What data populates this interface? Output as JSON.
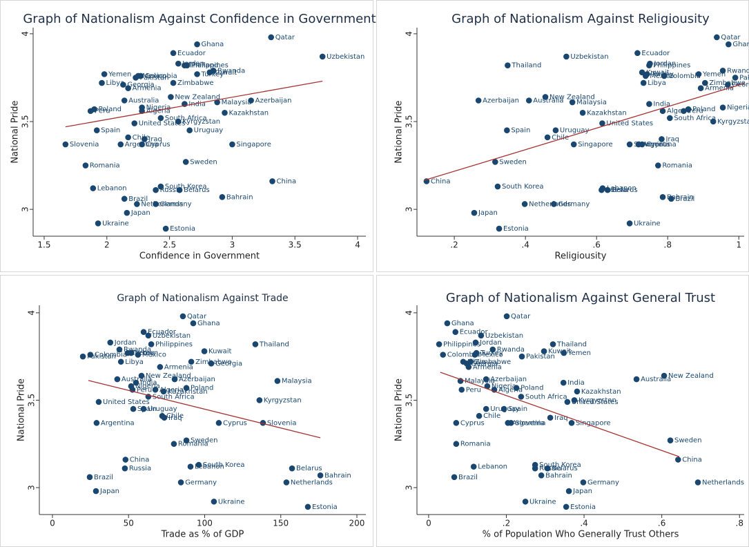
{
  "chart_data": [
    {
      "type": "scatter",
      "title": "Graph of Nationalism Against Confidence in Government",
      "x_label": "Confidence in Government",
      "y_label": "National Pride",
      "marker_color": "#1a476f",
      "fit_color": "#a83232",
      "xlim": [
        1.412,
        4.066
      ],
      "ylim": [
        2.847,
        4.035
      ],
      "xticks": [
        1.5,
        2,
        2.5,
        3,
        3.5,
        4
      ],
      "yticks": [
        3,
        3.5,
        4
      ],
      "labels": [
        "Qatar",
        "Ghana",
        "Uzbekistan",
        "Ecuador",
        "Philippines",
        "Jordan",
        "Thailand",
        "Rwanda",
        "Kuwait",
        "Turkey",
        "Mexico",
        "Colombia",
        "Yemen",
        "Pakistan",
        "Zimbabwe",
        "Libya",
        "Georgia",
        "Armenia",
        "New Zealand",
        "Azerbaijan",
        "Australia",
        "Malaysia",
        "India",
        "Nigeria",
        "Poland",
        "Kazakhstan",
        "Algeria",
        "Peru",
        "South Africa",
        "Kyrgyzstan",
        "United States",
        "Uruguay",
        "Spain",
        "Chile",
        "Iraq",
        "Singapore",
        "Slovenia",
        "Cyprus",
        "Argentina",
        "Sweden",
        "Romania",
        "China",
        "South Korea",
        "Lebanon",
        "Belarus",
        "Russia",
        "Bahrain",
        "Brazil",
        "Netherlands",
        "Germany",
        "Japan",
        "Ukraine",
        "Estonia"
      ],
      "x": [
        3.31,
        2.72,
        3.72,
        2.53,
        2.64,
        2.57,
        2.62,
        2.85,
        2.82,
        2.72,
        2.25,
        2.27,
        1.98,
        2.23,
        2.53,
        1.96,
        2.13,
        2.17,
        2.51,
        3.15,
        2.14,
        2.88,
        2.62,
        2.28,
        1.9,
        2.94,
        2.28,
        1.87,
        2.43,
        2.57,
        2.22,
        2.66,
        1.92,
        2.17,
        2.3,
        3.0,
        1.67,
        2.28,
        2.11,
        2.63,
        1.83,
        3.32,
        2.43,
        1.89,
        2.58,
        2.39,
        2.92,
        2.14,
        2.24,
        2.39,
        2.16,
        1.93,
        2.47
      ],
      "y": [
        3.98,
        3.94,
        3.87,
        3.89,
        3.82,
        3.83,
        3.82,
        3.79,
        3.78,
        3.77,
        3.76,
        3.76,
        3.77,
        3.75,
        3.72,
        3.72,
        3.71,
        3.69,
        3.64,
        3.62,
        3.62,
        3.61,
        3.6,
        3.58,
        3.57,
        3.55,
        3.56,
        3.56,
        3.52,
        3.5,
        3.49,
        3.45,
        3.45,
        3.41,
        3.4,
        3.37,
        3.37,
        3.37,
        3.37,
        3.27,
        3.25,
        3.16,
        3.13,
        3.12,
        3.11,
        3.11,
        3.07,
        3.06,
        3.03,
        3.03,
        2.98,
        2.92,
        2.89
      ],
      "fit": {
        "x": [
          1.67,
          3.72
        ],
        "y": [
          3.47,
          3.73
        ]
      }
    },
    {
      "type": "scatter",
      "title": "Graph of Nationalism Against Religiousity",
      "x_label": "Religiousity",
      "y_label": "National Pride",
      "marker_color": "#1a476f",
      "fit_color": "#a83232",
      "xlim": [
        0.095,
        1.015
      ],
      "ylim": [
        2.847,
        4.035
      ],
      "xticks": [
        {
          "value": 0.2,
          "label": ".2"
        },
        {
          "value": 0.4,
          "label": ".4"
        },
        {
          "value": 0.6,
          "label": ".6"
        },
        {
          "value": 0.8,
          "label": ".8"
        },
        1
      ],
      "yticks": [
        3,
        3.5,
        4
      ],
      "labels": [
        "Qatar",
        "Ghana",
        "Uzbekistan",
        "Ecuador",
        "Philippines",
        "Jordan",
        "Thailand",
        "Rwanda",
        "Kuwait",
        "Turkey",
        "Mexico",
        "Colombia",
        "Yemen",
        "Pakistan",
        "Zimbabwe",
        "Libya",
        "Georgia",
        "Armenia",
        "New Zealand",
        "Azerbaijan",
        "Australia",
        "Malaysia",
        "India",
        "Nigeria",
        "Poland",
        "Kazakhstan",
        "Algeria",
        "Peru",
        "South Africa",
        "Kyrgyzstan",
        "United States",
        "Uruguay",
        "Spain",
        "Chile",
        "Iraq",
        "Singapore",
        "Slovenia",
        "Cyprus",
        "Argentina",
        "Sweden",
        "Romania",
        "China",
        "South Korea",
        "Lebanon",
        "Belarus",
        "Russia",
        "Bahrain",
        "Brazil",
        "Netherlands",
        "Germany",
        "Japan",
        "Ukraine",
        "Estonia"
      ],
      "x": [
        0.938,
        0.971,
        0.515,
        0.715,
        0.748,
        0.75,
        0.35,
        0.955,
        0.728,
        0.742,
        0.738,
        0.79,
        0.887,
        0.99,
        0.905,
        0.732,
        0.969,
        0.893,
        0.456,
        0.268,
        0.41,
        0.532,
        0.748,
        0.955,
        0.858,
        0.561,
        0.786,
        0.845,
        0.806,
        0.928,
        0.616,
        0.485,
        0.348,
        0.462,
        0.783,
        0.536,
        0.693,
        0.728,
        0.718,
        0.315,
        0.773,
        0.122,
        0.322,
        0.617,
        0.631,
        0.614,
        0.786,
        0.81,
        0.398,
        0.48,
        0.256,
        0.693,
        0.326
      ],
      "y": [
        3.98,
        3.94,
        3.87,
        3.89,
        3.82,
        3.83,
        3.82,
        3.79,
        3.78,
        3.77,
        3.76,
        3.76,
        3.77,
        3.75,
        3.72,
        3.72,
        3.71,
        3.69,
        3.64,
        3.62,
        3.62,
        3.61,
        3.6,
        3.58,
        3.57,
        3.55,
        3.56,
        3.56,
        3.52,
        3.5,
        3.49,
        3.45,
        3.45,
        3.41,
        3.4,
        3.37,
        3.37,
        3.37,
        3.37,
        3.27,
        3.25,
        3.16,
        3.13,
        3.12,
        3.11,
        3.11,
        3.07,
        3.06,
        3.03,
        3.03,
        2.98,
        2.92,
        2.89
      ],
      "fit": {
        "x": [
          0.115,
          1.015
        ],
        "y": [
          3.165,
          3.717
        ]
      }
    },
    {
      "type": "scatter",
      "title": "Graph of Nationalism Against Trade",
      "x_label": "Trade as % of GDP",
      "y_label": "National Pride",
      "marker_color": "#1a476f",
      "fit_color": "#a83232",
      "xlim": [
        -8.6,
        205.9
      ],
      "ylim": [
        2.846,
        4.043
      ],
      "xticks": [
        0,
        50,
        100,
        150,
        200
      ],
      "yticks": [
        3,
        3.5,
        4
      ],
      "labels": [
        "Qatar",
        "Ghana",
        "Uzbekistan",
        "Ecuador",
        "Philippines",
        "Jordan",
        "Thailand",
        "Rwanda",
        "Kuwait",
        "Turkey",
        "Mexico",
        "Colombia",
        "Yemen",
        "Pakistan",
        "Zimbabwe",
        "Libya",
        "Georgia",
        "Armenia",
        "New Zealand",
        "Azerbaijan",
        "Australia",
        "Malaysia",
        "India",
        "Nigeria",
        "Poland",
        "Kazakhstan",
        "Algeria",
        "Peru",
        "South Africa",
        "Kyrgyzstan",
        "United States",
        "Uruguay",
        "Spain",
        "Chile",
        "Iraq",
        "Slovenia",
        "Cyprus",
        "Argentina",
        "Sweden",
        "Romania",
        "China",
        "South Korea",
        "Lebanon",
        "Belarus",
        "Russia",
        "Bahrain",
        "Brazil",
        "Netherlands",
        "Germany",
        "Japan",
        "Ukraine",
        "Estonia"
      ],
      "x": [
        85.7,
        92.5,
        63.0,
        59.9,
        64.9,
        38,
        133.3,
        44,
        99.8,
        49.4,
        56.2,
        24.9,
        51.7,
        20,
        91.2,
        45,
        104.3,
        70.7,
        58.5,
        80.3,
        42.6,
        147.8,
        54.9,
        51.7,
        88,
        73,
        67.6,
        52.6,
        63,
        136,
        30.4,
        59.9,
        53.1,
        72.1,
        73.5,
        138.3,
        109.3,
        29,
        88,
        79.8,
        48,
        96.1,
        90.7,
        157.4,
        47.6,
        176,
        24.5,
        153.7,
        84.4,
        28.6,
        106.1,
        167.8
      ],
      "y": [
        3.98,
        3.94,
        3.87,
        3.89,
        3.82,
        3.83,
        3.82,
        3.79,
        3.78,
        3.77,
        3.76,
        3.76,
        3.77,
        3.75,
        3.72,
        3.72,
        3.71,
        3.69,
        3.64,
        3.62,
        3.62,
        3.61,
        3.6,
        3.58,
        3.57,
        3.55,
        3.56,
        3.56,
        3.52,
        3.5,
        3.49,
        3.45,
        3.45,
        3.41,
        3.4,
        3.37,
        3.37,
        3.37,
        3.27,
        3.25,
        3.16,
        3.13,
        3.12,
        3.11,
        3.11,
        3.07,
        3.06,
        3.03,
        3.03,
        2.98,
        2.92,
        2.89
      ],
      "fit": {
        "x": [
          23.6,
          176
        ],
        "y": [
          3.613,
          3.285
        ]
      }
    },
    {
      "type": "scatter",
      "title": "Graph of Nationalism Against General Trust",
      "x_label": "% of Population Who Generally Trust Others",
      "y_label": "National Pride",
      "marker_color": "#1a476f",
      "fit_color": "#a83232",
      "xlim": [
        -0.03,
        0.812
      ],
      "ylim": [
        2.846,
        4.043
      ],
      "xticks": [
        0,
        {
          "value": 0.2,
          "label": ".2"
        },
        {
          "value": 0.4,
          "label": ".4"
        },
        {
          "value": 0.6,
          "label": ".6"
        },
        {
          "value": 0.8,
          "label": ".8"
        }
      ],
      "yticks": [
        3,
        3.5,
        4
      ],
      "labels": [
        "Qatar",
        "Ghana",
        "Uzbekistan",
        "Ecuador",
        "Philippines",
        "Jordan",
        "Thailand",
        "Rwanda",
        "Kuwait",
        "Turkey",
        "Mexico",
        "Colombia",
        "Yemen",
        "Pakistan",
        "Zimbabwe",
        "Libya",
        "Georgia",
        "Armenia",
        "New Zealand",
        "Azerbaijan",
        "Australia",
        "Malaysia",
        "India",
        "Nigeria",
        "Poland",
        "Kazakhstan",
        "Algeria",
        "Peru",
        "South Africa",
        "Kyrgyzstan",
        "United States",
        "Uruguay",
        "Spain",
        "Chile",
        "Iraq",
        "Singapore",
        "Slovenia",
        "Cyprus",
        "Argentina",
        "Sweden",
        "Romania",
        "China",
        "South Korea",
        "Lebanon",
        "Belarus",
        "Russia",
        "Bahrain",
        "Brazil",
        "Netherlands",
        "Germany",
        "Japan",
        "Ukraine",
        "Estonia"
      ],
      "x": [
        0.201,
        0.048,
        0.135,
        0.069,
        0.027,
        0.121,
        0.32,
        0.165,
        0.297,
        0.123,
        0.119,
        0.037,
        0.348,
        0.24,
        0.108,
        0.089,
        0.098,
        0.103,
        0.606,
        0.148,
        0.535,
        0.082,
        0.347,
        0.151,
        0.226,
        0.382,
        0.169,
        0.085,
        0.238,
        0.375,
        0.357,
        0.148,
        0.194,
        0.13,
        0.313,
        0.368,
        0.212,
        0.071,
        0.204,
        0.622,
        0.071,
        0.642,
        0.274,
        0.116,
        0.306,
        0.274,
        0.29,
        0.066,
        0.693,
        0.398,
        0.361,
        0.249,
        0.354
      ],
      "y": [
        3.98,
        3.94,
        3.87,
        3.89,
        3.82,
        3.83,
        3.82,
        3.79,
        3.78,
        3.77,
        3.76,
        3.76,
        3.77,
        3.75,
        3.72,
        3.72,
        3.71,
        3.69,
        3.64,
        3.62,
        3.62,
        3.61,
        3.6,
        3.58,
        3.57,
        3.55,
        3.56,
        3.56,
        3.52,
        3.5,
        3.49,
        3.45,
        3.45,
        3.41,
        3.4,
        3.37,
        3.37,
        3.37,
        3.37,
        3.27,
        3.25,
        3.16,
        3.13,
        3.12,
        3.11,
        3.11,
        3.07,
        3.06,
        3.03,
        3.03,
        2.98,
        2.92,
        2.89
      ],
      "fit": {
        "x": [
          0.03,
          0.645
        ],
        "y": [
          3.66,
          3.177
        ]
      }
    }
  ]
}
